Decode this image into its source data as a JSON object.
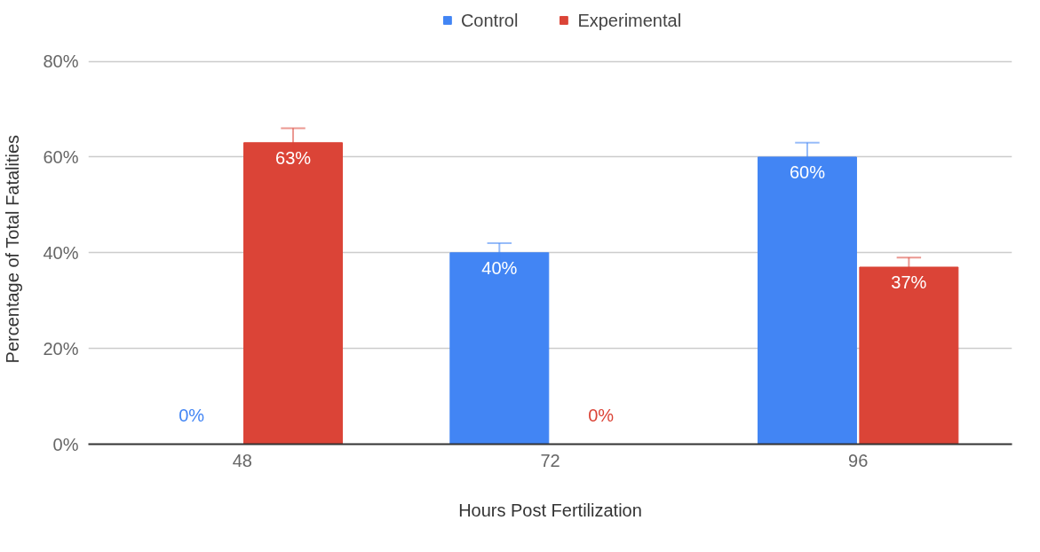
{
  "chart_data": {
    "type": "bar",
    "xlabel": "Hours Post Fertilization",
    "ylabel": "Percentage of Total Fatalities",
    "categories": [
      "48",
      "72",
      "96"
    ],
    "series": [
      {
        "name": "Control",
        "color": "#4285f4",
        "values": [
          0,
          40,
          60
        ],
        "errors": [
          null,
          2,
          3
        ],
        "value_labels": [
          "0%",
          "40%",
          "60%"
        ]
      },
      {
        "name": "Experimental",
        "color": "#db4437",
        "values": [
          63,
          0,
          37
        ],
        "errors": [
          3,
          null,
          2
        ],
        "value_labels": [
          "63%",
          "0%",
          "37%"
        ]
      }
    ],
    "ylim": [
      0,
      80
    ],
    "yticks": [
      {
        "value": 0,
        "label": "0%"
      },
      {
        "value": 20,
        "label": "20%"
      },
      {
        "value": 40,
        "label": "40%"
      },
      {
        "value": 60,
        "label": "60%"
      },
      {
        "value": 80,
        "label": "80%"
      }
    ],
    "grid": "y",
    "legend": "top"
  }
}
